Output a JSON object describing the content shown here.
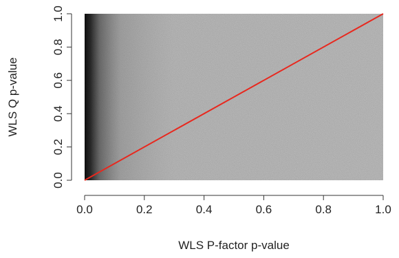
{
  "chart_data": {
    "type": "scatter",
    "title": "",
    "xlabel": "WLS P-factor p-value",
    "ylabel": "WLS Q p-value",
    "xlim": [
      0,
      1
    ],
    "ylim": [
      0,
      1
    ],
    "xticks": [
      0.0,
      0.2,
      0.4,
      0.6,
      0.8,
      1.0
    ],
    "yticks": [
      0.0,
      0.2,
      0.4,
      0.6,
      0.8,
      1.0
    ],
    "xtick_labels": [
      "0.0",
      "0.2",
      "0.4",
      "0.6",
      "0.8",
      "1.0"
    ],
    "ytick_labels": [
      "0.0",
      "0.2",
      "0.4",
      "0.6",
      "0.8",
      "1.0"
    ],
    "grid": false,
    "colors": {
      "points": "#1a1a1a",
      "reference_line": "#e8281e",
      "axis": "#333333"
    },
    "density_note_points": "dense gray cloud covering [0,1]x[0,1], darkest near x=0",
    "reference_line": {
      "x": [
        0,
        1
      ],
      "y": [
        0,
        1
      ]
    }
  }
}
